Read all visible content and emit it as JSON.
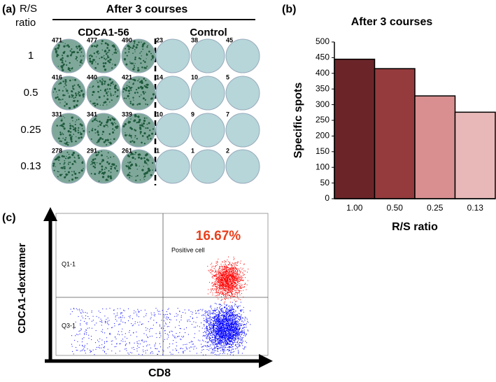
{
  "panel_a": {
    "label": "(a)",
    "title": "After 3 courses",
    "row_header_lines": [
      "R/S",
      "ratio"
    ],
    "groups": [
      "CDCA1-56",
      "Control"
    ],
    "ratios": [
      "1",
      "0.5",
      "0.25",
      "0.13"
    ],
    "counts": [
      [
        [
          471,
          477,
          490
        ],
        [
          416,
          440,
          421
        ],
        [
          331,
          341,
          339
        ],
        [
          278,
          291,
          261
        ]
      ],
      [
        [
          23,
          38,
          45
        ],
        [
          14,
          10,
          5
        ],
        [
          10,
          9,
          7
        ],
        [
          1,
          1,
          2
        ]
      ]
    ]
  },
  "chart_data": {
    "type": "bar",
    "label": "(b)",
    "title": "After 3 courses",
    "x_label": "R/S ratio",
    "y_label": "Specific spots",
    "categories": [
      "1.00",
      "0.50",
      "0.25",
      "0.13"
    ],
    "values": [
      445,
      415,
      328,
      276
    ],
    "colors": [
      "#6b2528",
      "#953b3d",
      "#d98f90",
      "#e8b8b8"
    ],
    "ylim": [
      0,
      500
    ],
    "yticks": [
      0,
      50,
      100,
      150,
      200,
      250,
      300,
      350,
      400,
      450,
      500
    ]
  },
  "panel_c": {
    "label": "(c)",
    "x_label": "CD8",
    "y_label": "CDCA1-dextramer",
    "percent": "16.67%",
    "gate_label": "Positive cell",
    "quadrants": [
      "Q1-1",
      "Q3-1"
    ]
  }
}
